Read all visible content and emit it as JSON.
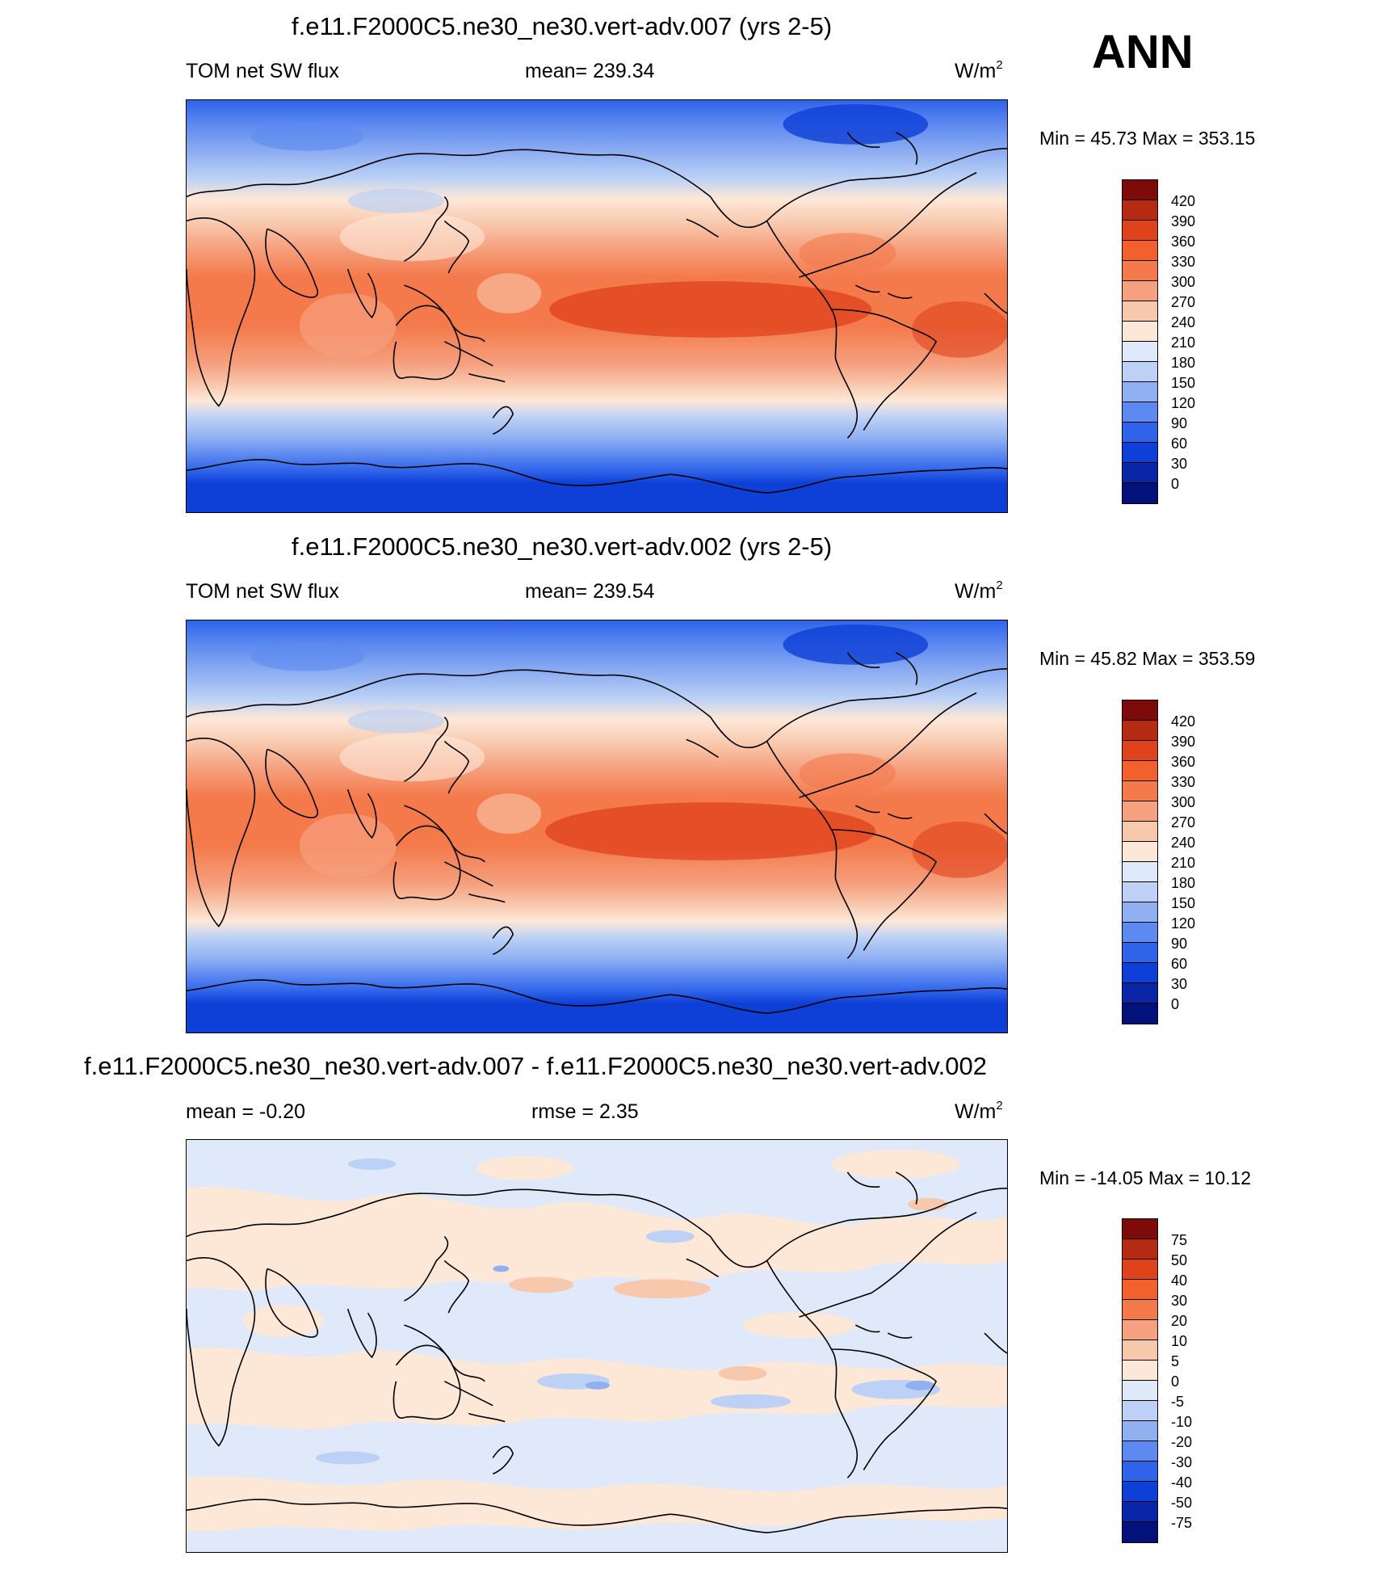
{
  "season": "ANN",
  "panels": [
    {
      "title": "f.e11.F2000C5.ne30_ne30.vert-adv.007 (yrs 2-5)",
      "left": "TOM net SW flux",
      "center": "mean= 239.34",
      "units": "W/m",
      "units_sup": "2",
      "minmax": "Min =  45.73 Max = 353.15",
      "cbar_labels": [
        "420",
        "390",
        "360",
        "330",
        "300",
        "270",
        "240",
        "210",
        "180",
        "150",
        "120",
        "90",
        "60",
        "30",
        "0"
      ]
    },
    {
      "title": "f.e11.F2000C5.ne30_ne30.vert-adv.002 (yrs 2-5)",
      "left": "TOM net SW flux",
      "center": "mean= 239.54",
      "units": "W/m",
      "units_sup": "2",
      "minmax": "Min =  45.82 Max = 353.59",
      "cbar_labels": [
        "420",
        "390",
        "360",
        "330",
        "300",
        "270",
        "240",
        "210",
        "180",
        "150",
        "120",
        "90",
        "60",
        "30",
        "0"
      ]
    },
    {
      "title": "f.e11.F2000C5.ne30_ne30.vert-adv.007 - f.e11.F2000C5.ne30_ne30.vert-adv.002",
      "left": "mean =  -0.20",
      "center": "rmse =   2.35",
      "units": "W/m",
      "units_sup": "2",
      "minmax": "Min = -14.05 Max =  10.12",
      "cbar_labels": [
        "75",
        "50",
        "40",
        "30",
        "20",
        "10",
        "5",
        "0",
        "-5",
        "-10",
        "-20",
        "-30",
        "-40",
        "-50",
        "-75"
      ]
    }
  ],
  "colors": {
    "palette": [
      "#7f0a0a",
      "#b52a12",
      "#e0421c",
      "#f2602e",
      "#f47a4c",
      "#f5a07e",
      "#f8c8ad",
      "#fde8d8",
      "#dfe9fa",
      "#bcd1f5",
      "#90b0f2",
      "#5d8af0",
      "#2f63ea",
      "#0e3fd6",
      "#0926a8",
      "#03117a"
    ]
  }
}
